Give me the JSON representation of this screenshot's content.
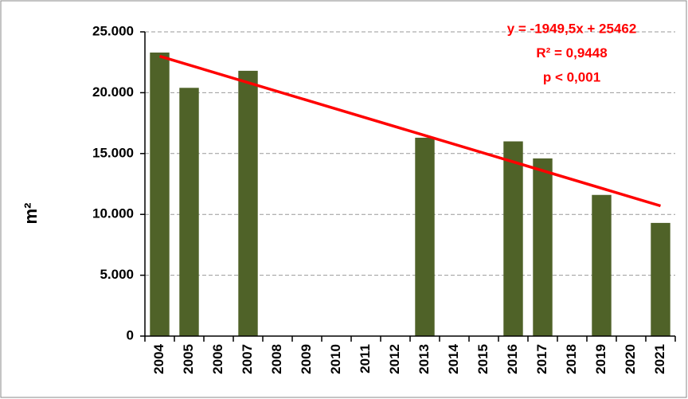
{
  "chart_data": {
    "type": "bar",
    "y_label": "m²",
    "categories": [
      "2004",
      "2005",
      "2006",
      "2007",
      "2008",
      "2009",
      "2010",
      "2011",
      "2012",
      "2013",
      "2014",
      "2015",
      "2016",
      "2017",
      "2018",
      "2019",
      "2020",
      "2021"
    ],
    "values": [
      23300,
      20400,
      null,
      21800,
      null,
      null,
      null,
      null,
      null,
      16300,
      null,
      null,
      16000,
      14600,
      null,
      11600,
      null,
      9300
    ],
    "color": "#4f6228",
    "ylim": [
      0,
      25000
    ],
    "yticks": [
      {
        "value": 0,
        "label": "0"
      },
      {
        "value": 5000,
        "label": "5.000"
      },
      {
        "value": 10000,
        "label": "10.000"
      },
      {
        "value": 15000,
        "label": "15.000"
      },
      {
        "value": 20000,
        "label": "20.000"
      },
      {
        "value": 25000,
        "label": "25.000"
      }
    ],
    "grid": true,
    "trendline": {
      "color": "#ff0000",
      "start": 23000,
      "end": 10700
    },
    "annotations": [
      "y = -1949,5x + 25462",
      "R² = 0,9448",
      "p < 0,001"
    ]
  }
}
